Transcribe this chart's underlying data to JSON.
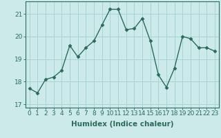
{
  "x": [
    0,
    1,
    2,
    3,
    4,
    5,
    6,
    7,
    8,
    9,
    10,
    11,
    12,
    13,
    14,
    15,
    16,
    17,
    18,
    19,
    20,
    21,
    22,
    23
  ],
  "y": [
    17.7,
    17.5,
    18.1,
    18.2,
    18.5,
    19.6,
    19.1,
    19.5,
    19.8,
    20.5,
    21.2,
    21.2,
    20.3,
    20.35,
    20.8,
    19.8,
    18.3,
    17.75,
    18.6,
    20.0,
    19.9,
    19.5,
    19.5,
    19.35
  ],
  "xlabel": "Humidex (Indice chaleur)",
  "xlim": [
    -0.5,
    23.5
  ],
  "ylim": [
    16.85,
    21.55
  ],
  "yticks": [
    17,
    18,
    19,
    20,
    21
  ],
  "xticks": [
    0,
    1,
    2,
    3,
    4,
    5,
    6,
    7,
    8,
    9,
    10,
    11,
    12,
    13,
    14,
    15,
    16,
    17,
    18,
    19,
    20,
    21,
    22,
    23
  ],
  "line_color": "#2a6b5a",
  "marker": "D",
  "marker_size": 2.5,
  "bg_color": "#cceaea",
  "grid_color": "#a8d4d4",
  "tick_fontsize": 6.5,
  "xlabel_fontsize": 7.5
}
